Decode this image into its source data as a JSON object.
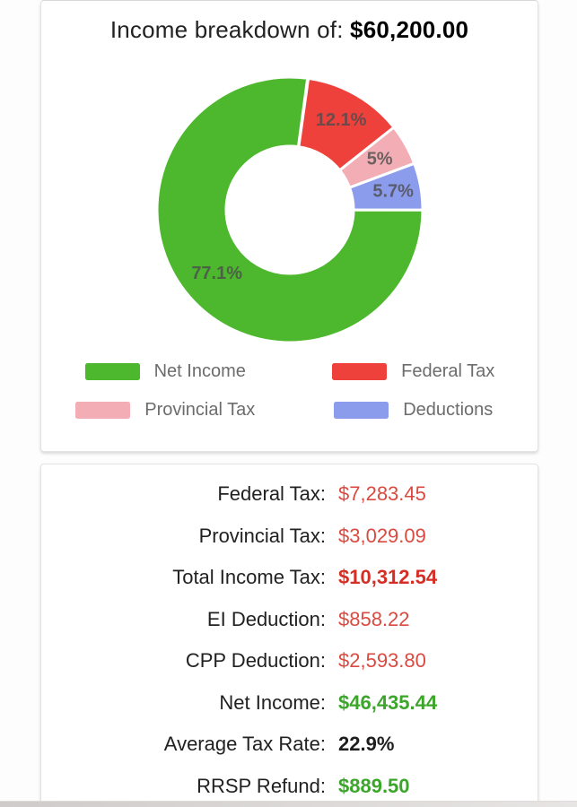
{
  "chart": {
    "title_prefix": "Income breakdown of: ",
    "title_amount": "$60,200.00"
  },
  "chart_data": {
    "type": "pie",
    "subtype": "donut",
    "title": "Income breakdown of: $60,200.00",
    "start_angle_deg": 8,
    "outer_radius": 148,
    "inner_radius": 71,
    "legend_position": "bottom",
    "slices": [
      {
        "name": "federal-tax",
        "label": "Federal Tax",
        "pct": 12.1,
        "pct_label": "12.1%",
        "color": "#EF413C",
        "label_r": 115
      },
      {
        "name": "provincial-tax",
        "label": "Provincial Tax",
        "pct": 5.0,
        "pct_label": "5%",
        "color": "#F2AEB4",
        "label_r": 115
      },
      {
        "name": "deductions",
        "label": "Deductions",
        "pct": 5.7,
        "pct_label": "5.7%",
        "color": "#8C9CEC",
        "label_r": 117
      },
      {
        "name": "net-income",
        "label": "Net Income",
        "pct": 77.1,
        "pct_label": "77.1%",
        "color": "#4DB82E",
        "label_r": 108
      }
    ],
    "legend": [
      {
        "label": "Net Income",
        "color": "#4DB82E"
      },
      {
        "label": "Federal Tax",
        "color": "#EF413C"
      },
      {
        "label": "Provincial Tax",
        "color": "#F2AEB4"
      },
      {
        "label": "Deductions",
        "color": "#8C9CEC"
      }
    ]
  },
  "summary": {
    "rows": [
      {
        "label": "Federal Tax:",
        "value": "$7,283.45",
        "value_color": "#DA4A40",
        "bold": false
      },
      {
        "label": "Provincial Tax:",
        "value": "$3,029.09",
        "value_color": "#DA4A40",
        "bold": false
      },
      {
        "label": "Total Income Tax:",
        "value": "$10,312.54",
        "value_color": "#D52E24",
        "bold": true
      },
      {
        "label": "EI Deduction:",
        "value": "$858.22",
        "value_color": "#DA4A40",
        "bold": false
      },
      {
        "label": "CPP Deduction:",
        "value": "$2,593.80",
        "value_color": "#DA4A40",
        "bold": false
      },
      {
        "label": "Net Income:",
        "value": "$46,435.44",
        "value_color": "#3CA62A",
        "bold": true
      },
      {
        "label": "Average Tax Rate:",
        "value": "22.9%",
        "value_color": "#1E1E1E",
        "bold": true
      },
      {
        "label": "RRSP Refund:",
        "value": "$889.50",
        "value_color": "#3CA62A",
        "bold": true
      }
    ]
  },
  "colors": {
    "card_border": "#e4e2e2",
    "legend_text": "#6c6c6c",
    "slice_label_text": "#4c4c4c",
    "row_label_text": "#212121"
  }
}
